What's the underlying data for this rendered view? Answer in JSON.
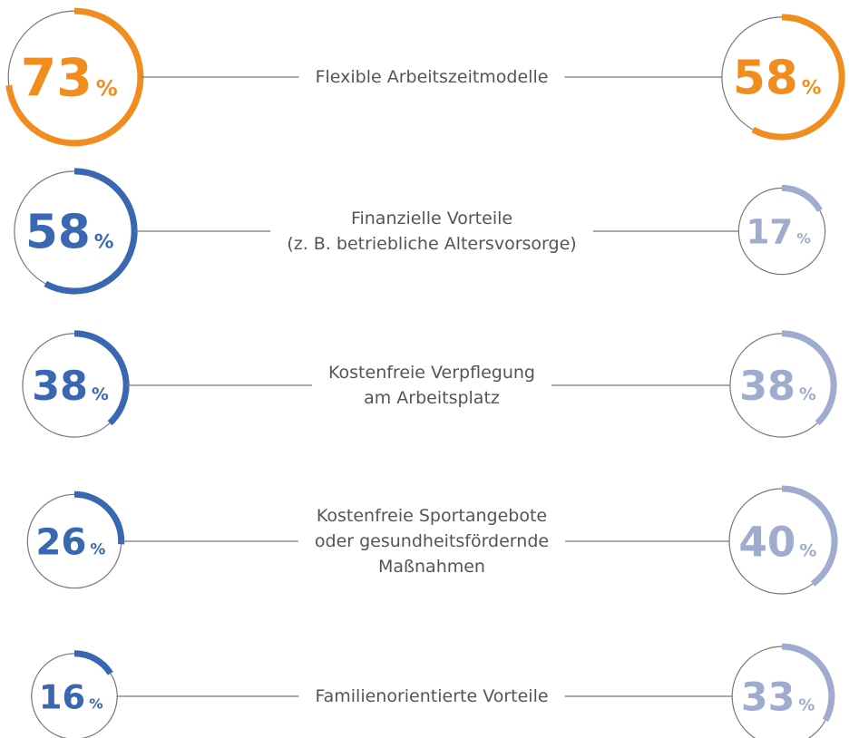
{
  "chart_data": {
    "type": "gauge",
    "unit": "%",
    "categories": [
      "Flexible Arbeitszeitmodelle",
      "Finanzielle Vorteile\n(z. B. betriebliche Altersvorsorge)",
      "Kostenfreie Verpflegung\nam Arbeitsplatz",
      "Kostenfreie Sportangebote\noder gesundheitsfördernde\nMaßnahmen",
      "Familienorientierte Vorteile"
    ],
    "series": [
      {
        "values": [
          73,
          58,
          38,
          26,
          16
        ],
        "colors": [
          "#f18d1f",
          "#3a67b1",
          "#3a67b1",
          "#3a67b1",
          "#3a67b1"
        ]
      },
      {
        "values": [
          58,
          17,
          38,
          40,
          33
        ],
        "colors": [
          "#f18d1f",
          "#9fabcf",
          "#9fabcf",
          "#9fabcf",
          "#9fabcf"
        ]
      }
    ]
  }
}
